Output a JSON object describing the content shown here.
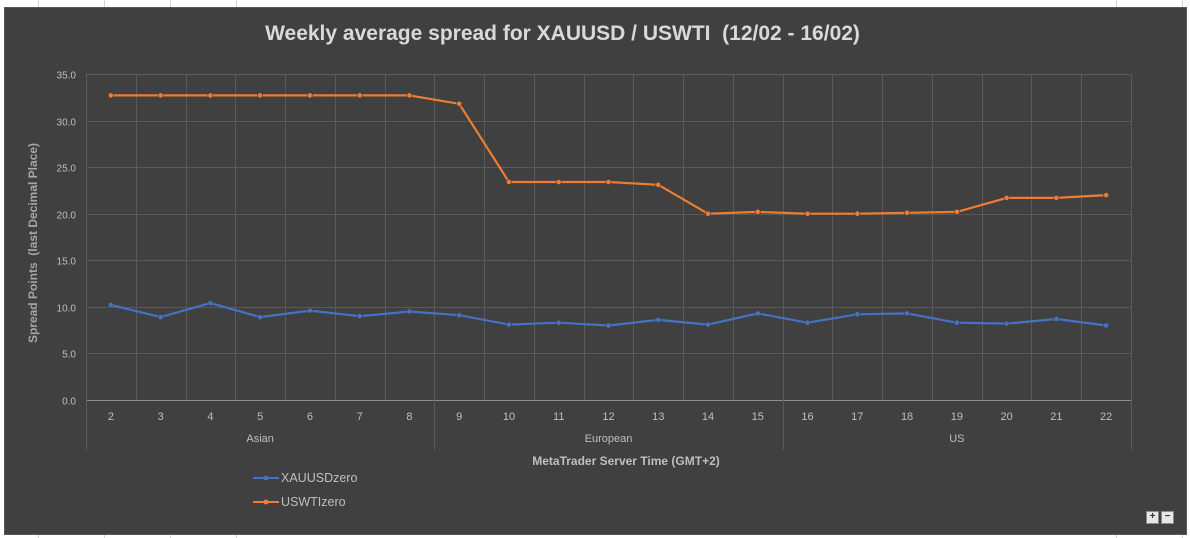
{
  "chart_data": {
    "type": "line",
    "title": "Weekly average spread for XAUUSD / USWTI  (12/02 - 16/02)",
    "xlabel": "MetaTrader Server Time (GMT+2)",
    "ylabel": "Spread Points  (last Decimal Place)",
    "ylim": [
      0,
      35
    ],
    "ytick_labels": [
      "0.0",
      "5.0",
      "10.0",
      "15.0",
      "20.0",
      "25.0",
      "30.0",
      "35.0"
    ],
    "categories": [
      "2",
      "3",
      "4",
      "5",
      "6",
      "7",
      "8",
      "9",
      "10",
      "11",
      "12",
      "13",
      "14",
      "15",
      "16",
      "17",
      "18",
      "19",
      "20",
      "21",
      "22"
    ],
    "sessions": [
      "Asian",
      "European",
      "US"
    ],
    "grid": true,
    "legend_position": "bottom-left",
    "series": [
      {
        "name": "XAUUSDzero",
        "color": "#4472c4",
        "values": [
          10.2,
          8.9,
          10.4,
          8.9,
          9.6,
          9.0,
          9.5,
          9.1,
          8.1,
          8.3,
          8.0,
          8.6,
          8.1,
          9.3,
          8.3,
          9.2,
          9.3,
          8.3,
          8.2,
          8.7,
          8.0
        ]
      },
      {
        "name": "USWTIzero",
        "color": "#ed7d31",
        "values": [
          32.7,
          32.7,
          32.7,
          32.7,
          32.7,
          32.7,
          32.7,
          31.8,
          23.4,
          23.4,
          23.4,
          23.1,
          20.0,
          20.2,
          20.0,
          20.0,
          20.1,
          20.2,
          21.7,
          21.7,
          22.0
        ]
      }
    ]
  },
  "controls": {
    "zoom_in": "+",
    "zoom_out": "−"
  }
}
